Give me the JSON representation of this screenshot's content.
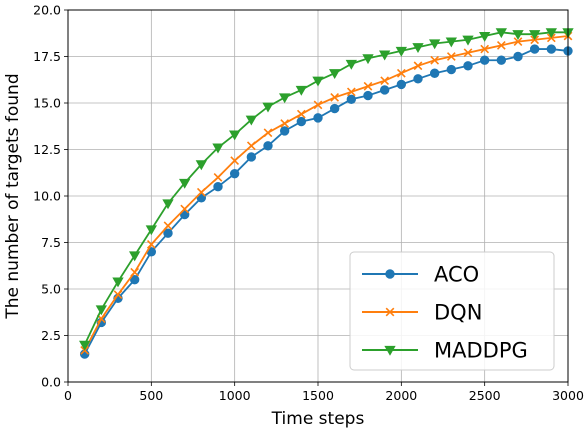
{
  "chart_data": {
    "type": "line",
    "title": "",
    "xlabel": "Time steps",
    "ylabel": "The number of targets found",
    "xlim": [
      0,
      3000
    ],
    "ylim": [
      0.0,
      20.0
    ],
    "xticks": [
      "0",
      "500",
      "1000",
      "1500",
      "2000",
      "2500",
      "3000"
    ],
    "yticks": [
      "0.0",
      "2.5",
      "5.0",
      "7.5",
      "10.0",
      "12.5",
      "15.0",
      "17.5",
      "20.0"
    ],
    "grid": true,
    "legend_position": "lower-right",
    "x": [
      100,
      200,
      300,
      400,
      500,
      600,
      700,
      800,
      900,
      1000,
      1100,
      1200,
      1300,
      1400,
      1500,
      1600,
      1700,
      1800,
      1900,
      2000,
      2100,
      2200,
      2300,
      2400,
      2500,
      2600,
      2700,
      2800,
      2900,
      3000
    ],
    "series": [
      {
        "name": "ACO",
        "color": "#1f77b4",
        "marker": "circle",
        "values": [
          1.5,
          3.2,
          4.5,
          5.5,
          7.0,
          8.0,
          9.0,
          9.9,
          10.5,
          11.2,
          12.1,
          12.7,
          13.5,
          14.0,
          14.2,
          14.7,
          15.2,
          15.4,
          15.7,
          16.0,
          16.3,
          16.6,
          16.8,
          17.0,
          17.3,
          17.3,
          17.5,
          17.9,
          17.9,
          17.8
        ]
      },
      {
        "name": "DQN",
        "color": "#ff7f0e",
        "marker": "x",
        "values": [
          1.7,
          3.4,
          4.7,
          5.9,
          7.4,
          8.4,
          9.3,
          10.2,
          11.0,
          11.9,
          12.7,
          13.4,
          13.9,
          14.4,
          14.9,
          15.3,
          15.6,
          15.9,
          16.2,
          16.6,
          17.0,
          17.3,
          17.5,
          17.7,
          17.9,
          18.1,
          18.3,
          18.4,
          18.5,
          18.6
        ]
      },
      {
        "name": "MADDPG",
        "color": "#2ca02c",
        "marker": "triangle-down",
        "values": [
          2.0,
          3.9,
          5.4,
          6.8,
          8.2,
          9.6,
          10.7,
          11.7,
          12.6,
          13.3,
          14.1,
          14.8,
          15.3,
          15.7,
          16.2,
          16.6,
          17.1,
          17.4,
          17.6,
          17.8,
          18.0,
          18.2,
          18.3,
          18.4,
          18.6,
          18.8,
          18.7,
          18.7,
          18.8,
          18.8
        ]
      }
    ]
  }
}
